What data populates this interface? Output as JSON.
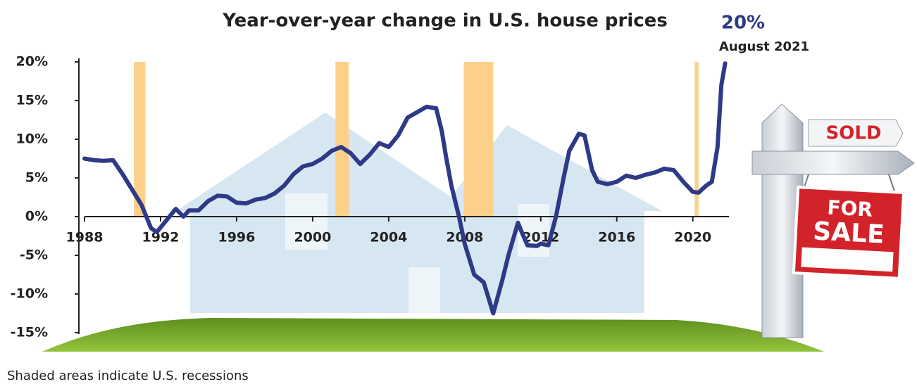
{
  "chart_data": {
    "type": "line",
    "title": "Year-over-year change in U.S. house prices",
    "annotation": {
      "value_text": "20%",
      "date_text": "August 2021"
    },
    "footnote": "Shaded areas indicate U.S. recessions",
    "sign": {
      "top": "SOLD",
      "lines": [
        "FOR",
        "SALE"
      ]
    },
    "color": "#2e3a87",
    "recession_color": "#fdd08a",
    "recessions": [
      [
        1990.6,
        1991.2
      ],
      [
        2001.2,
        2001.9
      ],
      [
        2007.95,
        2009.5
      ],
      [
        2020.1,
        2020.3
      ]
    ],
    "x": [
      1988,
      1988.5,
      1989,
      1989.5,
      1990,
      1990.5,
      1991,
      1991.5,
      1991.8,
      1992.3,
      1992.8,
      1993.2,
      1993.5,
      1994,
      1994.5,
      1995,
      1995.5,
      1996,
      1996.5,
      1997,
      1997.5,
      1998,
      1998.5,
      1999,
      1999.5,
      2000,
      2000.5,
      2001,
      2001.5,
      2002,
      2002.5,
      2003,
      2003.5,
      2004,
      2004.5,
      2005,
      2005.5,
      2006,
      2006.5,
      2006.8,
      2007,
      2007.3,
      2007.7,
      2008,
      2008.5,
      2009,
      2009.5,
      2010,
      2010.3,
      2010.8,
      2011,
      2011.3,
      2011.8,
      2012,
      2012.4,
      2012.8,
      2013.2,
      2013.5,
      2014,
      2014.3,
      2014.7,
      2015,
      2015.5,
      2016,
      2016.5,
      2017,
      2017.5,
      2018,
      2018.5,
      2019,
      2019.5,
      2020,
      2020.3,
      2020.7,
      2021,
      2021.3,
      2021.5,
      2021.7
    ],
    "values": [
      7.5,
      7.3,
      7.2,
      7.3,
      5.5,
      3.5,
      1.5,
      -1.5,
      -2,
      -0.5,
      1,
      0,
      0.8,
      0.8,
      2,
      2.7,
      2.6,
      1.8,
      1.7,
      2.2,
      2.4,
      3.0,
      4.0,
      5.5,
      6.5,
      6.8,
      7.5,
      8.5,
      9.0,
      8.2,
      6.8,
      8.0,
      9.5,
      9.0,
      10.5,
      12.8,
      13.5,
      14.2,
      14.0,
      11,
      8,
      4,
      0,
      -3.5,
      -7.5,
      -8.5,
      -12.5,
      -8,
      -5,
      -0.8,
      -2,
      -3.7,
      -3.8,
      -3.5,
      -3.7,
      0,
      5,
      8.5,
      10.7,
      10.5,
      6,
      4.5,
      4.2,
      4.5,
      5.3,
      5.0,
      5.4,
      5.7,
      6.2,
      6.0,
      4.5,
      3.2,
      3.1,
      4.0,
      4.5,
      9,
      17,
      19.8
    ],
    "xlim": [
      1988,
      2021.9
    ],
    "xticks": [
      1988,
      1992,
      1996,
      2000,
      2004,
      2008,
      2012,
      2016,
      2020
    ],
    "ylim": [
      -15,
      20
    ],
    "yticks": [
      {
        "value": 20,
        "label": "20%"
      },
      {
        "value": 15,
        "label": "15%"
      },
      {
        "value": 10,
        "label": "10%"
      },
      {
        "value": 5,
        "label": "5%"
      },
      {
        "value": 0,
        "label": "0%"
      },
      {
        "value": -5,
        "label": "-5%"
      },
      {
        "value": -10,
        "label": "-10%"
      },
      {
        "value": -15,
        "label": "-15%"
      }
    ]
  }
}
